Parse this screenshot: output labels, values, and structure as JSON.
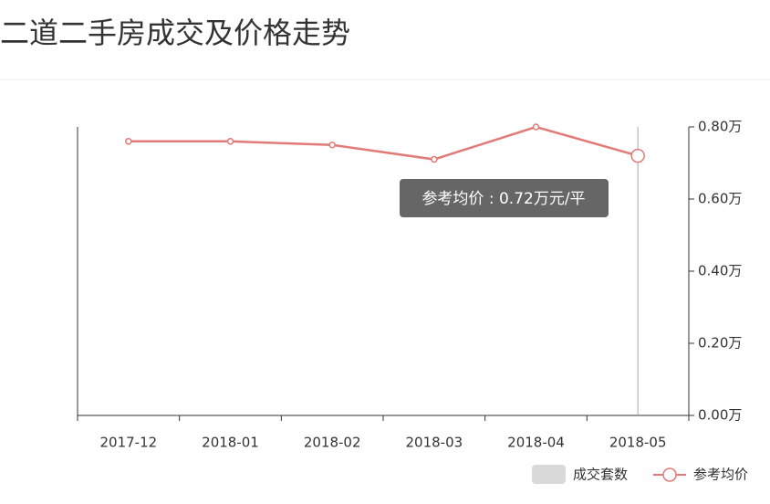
{
  "chart_data": {
    "type": "line",
    "title": "二道二手房成交及价格走势",
    "categories": [
      "2017-12",
      "2018-01",
      "2018-02",
      "2018-03",
      "2018-04",
      "2018-05"
    ],
    "series": [
      {
        "name": "成交套数",
        "type": "bar",
        "color": "#d9d9d9",
        "values": [
          null,
          null,
          null,
          null,
          null,
          null
        ]
      },
      {
        "name": "参考均价",
        "type": "line",
        "color": "#e07b78",
        "values": [
          0.76,
          0.76,
          0.75,
          0.71,
          0.8,
          0.72
        ]
      }
    ],
    "ylim": [
      0,
      0.8
    ],
    "yticks": [
      {
        "value": 0,
        "label": "0.00万"
      },
      {
        "value": 0.2,
        "label": "0.20万"
      },
      {
        "value": 0.4,
        "label": "0.40万"
      },
      {
        "value": 0.6,
        "label": "0.60万"
      },
      {
        "value": 0.8,
        "label": "0.80万"
      }
    ],
    "tooltip": "参考均价 : 0.72万元/平"
  }
}
